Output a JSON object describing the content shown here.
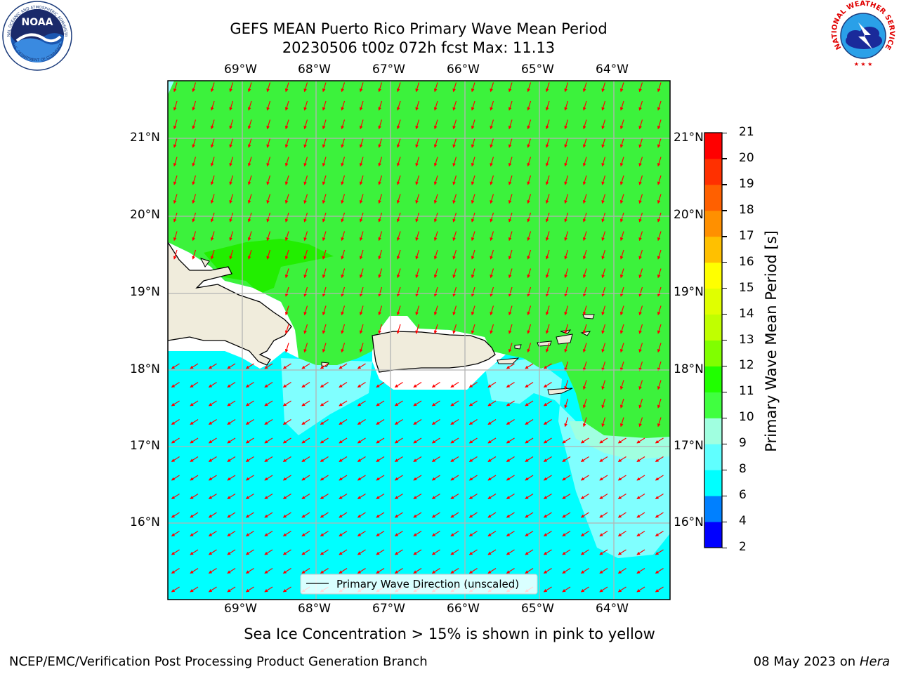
{
  "header": {
    "title_line1": "GEFS MEAN Puerto Rico Primary Wave Mean Period",
    "title_line2": "20230506 t00z 072h fcst   Max: 11.13"
  },
  "logos": {
    "noaa_text": "NOAA",
    "noaa_ring_top": "NATIONAL OCEANIC AND ATMOSPHERIC ADMINISTRATION",
    "noaa_ring_bottom": "U.S. DEPARTMENT OF COMMERCE",
    "nws_ring": "NATIONAL WEATHER SERVICE"
  },
  "map": {
    "lon_labels": [
      "69°W",
      "68°W",
      "67°W",
      "66°W",
      "65°W",
      "64°W"
    ],
    "lat_labels": [
      "21°N",
      "20°N",
      "19°N",
      "18°N",
      "17°N",
      "16°N"
    ],
    "legend_label": "Primary Wave Direction (unscaled)",
    "land_color": "#f0ecdc",
    "arrow_color": "#ff0000"
  },
  "colorbar": {
    "label": "Primary Wave Mean Period [s]",
    "ticks": [
      "2",
      "4",
      "6",
      "8",
      "9",
      "10",
      "11",
      "12",
      "13",
      "14",
      "15",
      "16",
      "17",
      "18",
      "19",
      "20",
      "21"
    ],
    "colors": [
      "#0000ff",
      "#0080ff",
      "#00ffff",
      "#60ffff",
      "#a0ffe0",
      "#40ff40",
      "#20ff00",
      "#80ff00",
      "#c0ff00",
      "#e0ff00",
      "#ffff00",
      "#ffc000",
      "#ff9000",
      "#ff6000",
      "#ff3000",
      "#ff0000"
    ]
  },
  "notes": {
    "sea_ice": "Sea Ice Concentration > 15% is shown in pink to yellow"
  },
  "footer": {
    "left": "NCEP/EMC/Verification Post Processing Product Generation Branch",
    "right_prefix": "08 May 2023 on",
    "right_host": "Hera"
  }
}
